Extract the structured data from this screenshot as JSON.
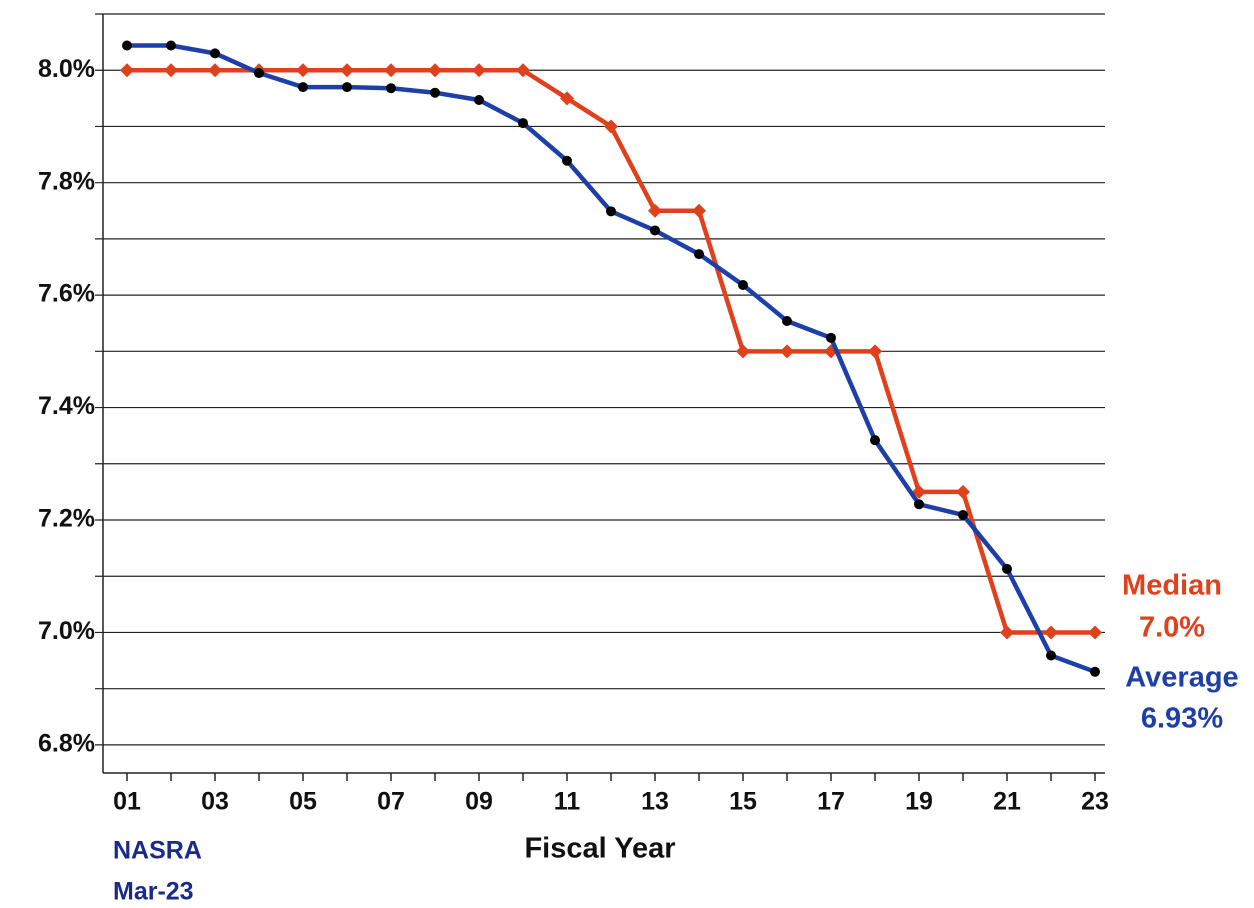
{
  "chart_data": {
    "type": "line",
    "x_label": "Fiscal Year",
    "categories": [
      "01",
      null,
      "03",
      null,
      "05",
      null,
      "07",
      null,
      "09",
      null,
      "11",
      null,
      "13",
      null,
      "15",
      null,
      "17",
      null,
      "19",
      null,
      "21",
      null,
      "23"
    ],
    "series": [
      {
        "name": "Median",
        "color": "#e0401c",
        "marker": "diamond",
        "values": [
          8.0,
          8.0,
          8.0,
          8.0,
          8.0,
          8.0,
          8.0,
          8.0,
          8.0,
          8.0,
          7.95,
          7.9,
          7.75,
          7.75,
          7.5,
          7.5,
          7.5,
          7.5,
          7.25,
          7.25,
          7.0,
          7.0,
          7.0
        ]
      },
      {
        "name": "Average",
        "color": "#1f3fa8",
        "marker": "circle",
        "values": [
          8.044,
          8.044,
          8.03,
          7.995,
          7.97,
          7.97,
          7.968,
          7.96,
          7.947,
          7.906,
          7.839,
          7.749,
          7.715,
          7.673,
          7.618,
          7.554,
          7.524,
          7.342,
          7.228,
          7.209,
          7.113,
          6.959,
          6.93
        ]
      }
    ],
    "end_labels": [
      "7.0%",
      "6.93%"
    ],
    "source": [
      "NASRA",
      "Mar-23"
    ],
    "source_color": "#1a2a8c",
    "ylim": [
      6.75,
      8.1
    ],
    "yticks": [
      {
        "value": 6.8,
        "label": "6.8%"
      },
      {
        "value": 7.0,
        "label": "7.0%"
      },
      {
        "value": 7.2,
        "label": "7.2%"
      },
      {
        "value": 7.4,
        "label": "7.4%"
      },
      {
        "value": 7.6,
        "label": "7.6%"
      },
      {
        "value": 7.8,
        "label": "7.8%"
      },
      {
        "value": 8.0,
        "label": "8.0%"
      }
    ],
    "minor_yticks": [
      6.9,
      7.1,
      7.3,
      7.5,
      7.7,
      7.9,
      8.1
    ],
    "grid": true
  }
}
